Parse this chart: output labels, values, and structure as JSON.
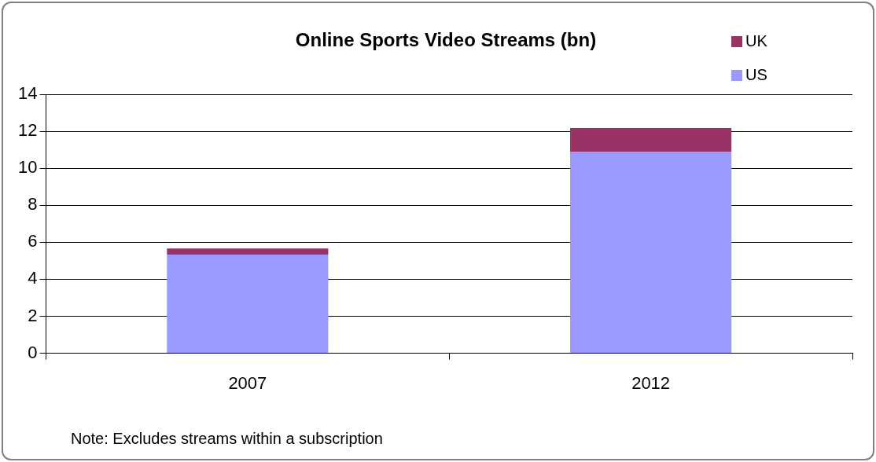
{
  "chart_data": {
    "type": "bar",
    "title": "Online Sports Video Streams (bn)",
    "categories": [
      "2007",
      "2012"
    ],
    "stacked": true,
    "series": [
      {
        "name": "US",
        "color": "#9999ff",
        "values": [
          5.33,
          10.88
        ]
      },
      {
        "name": "UK",
        "color": "#993366",
        "values": [
          0.33,
          1.29
        ]
      }
    ],
    "ylim": [
      0,
      14
    ],
    "yticks": [
      0,
      2,
      4,
      6,
      8,
      10,
      12,
      14
    ],
    "grid": "y",
    "legend": "top right",
    "annotations": [
      "Note: Excludes streams within a subscription"
    ]
  }
}
